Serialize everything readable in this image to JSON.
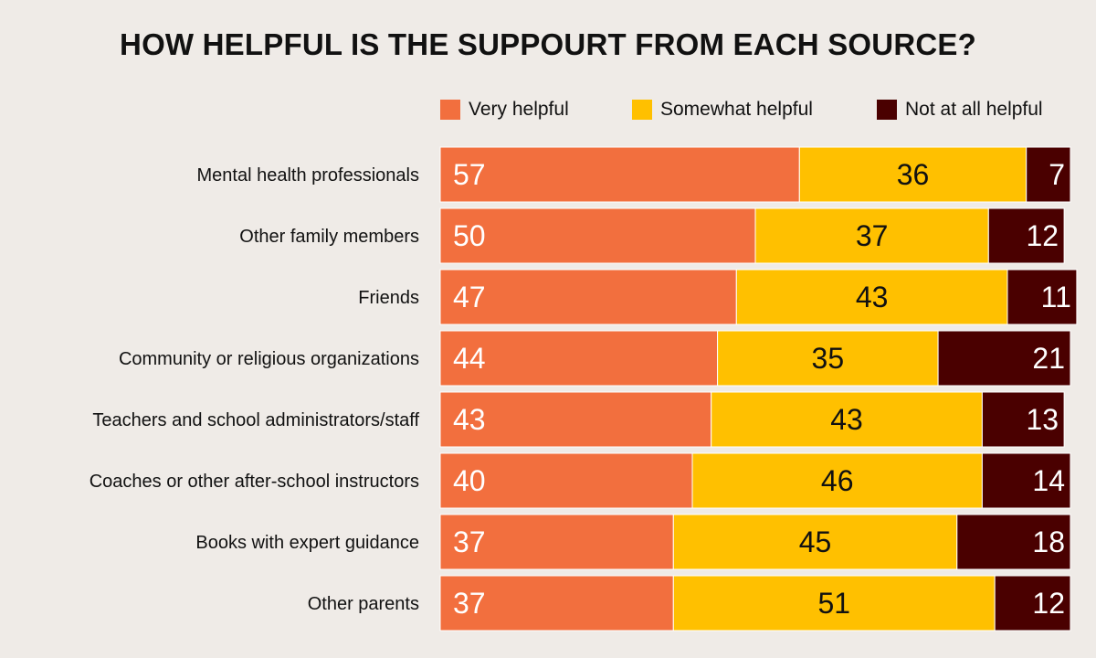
{
  "chart_data": {
    "type": "bar",
    "orientation": "horizontal",
    "stacked": true,
    "title": "HOW HELPFUL IS THE SUPPOURT FROM EACH SOURCE?",
    "legend_placement": "top-right",
    "grid": false,
    "xlim": [
      0,
      100
    ],
    "categories": [
      "Mental health professionals",
      "Other family members",
      "Friends",
      "Community or religious organizations",
      "Teachers and school administrators/staff",
      "Coaches or other after-school instructors",
      "Books with expert guidance",
      "Other parents"
    ],
    "series": [
      {
        "name": "Very helpful",
        "color": "#f26f3e",
        "label_color": "#ffffff",
        "values": [
          57,
          50,
          47,
          44,
          43,
          40,
          37,
          37
        ]
      },
      {
        "name": "Somewhat helpful",
        "color": "#ffc000",
        "label_color": "#111111",
        "values": [
          36,
          37,
          43,
          35,
          43,
          46,
          45,
          51
        ]
      },
      {
        "name": "Not at all helpful",
        "color": "#4a0000",
        "label_color": "#ffffff",
        "values": [
          7,
          12,
          11,
          21,
          13,
          14,
          18,
          12
        ]
      }
    ]
  }
}
